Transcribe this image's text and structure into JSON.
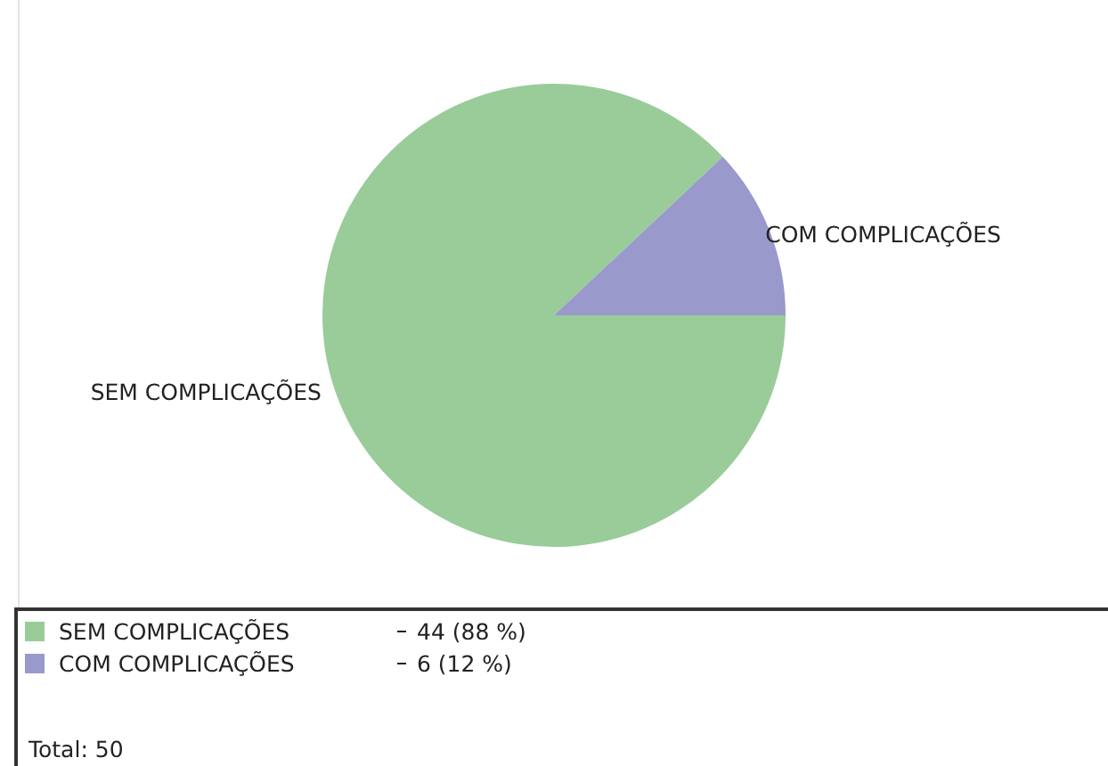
{
  "chart_data": {
    "type": "pie",
    "categories": [
      "SEM COMPLICAÇÕES",
      "COM COMPLICAÇÕES"
    ],
    "values": [
      44,
      6
    ],
    "colors": [
      "#99cc99",
      "#9999cc"
    ],
    "value_labels": [
      "44 (88 %)",
      "6 (12 %)"
    ],
    "legend": "bottom",
    "annotations": [
      "Total: 50"
    ]
  }
}
